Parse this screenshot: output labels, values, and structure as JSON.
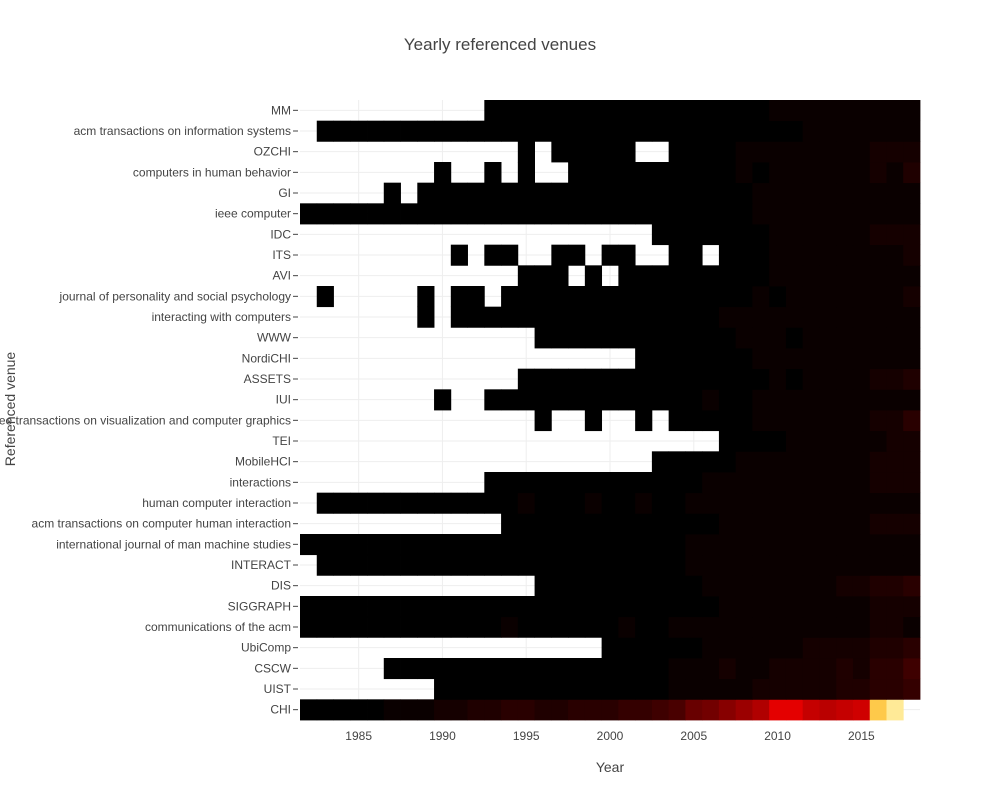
{
  "chart_data": {
    "type": "heatmap",
    "title": "Yearly referenced venues",
    "xlabel": "Year",
    "ylabel": "Referenced venue",
    "x_tick_labels": [
      "1985",
      "1990",
      "1995",
      "2000",
      "2005",
      "2010",
      "2015"
    ],
    "x_ticks": [
      1985,
      1990,
      1995,
      2000,
      2005,
      2010,
      2015
    ],
    "years": [
      1982,
      1983,
      1984,
      1985,
      1986,
      1987,
      1988,
      1989,
      1990,
      1991,
      1992,
      1993,
      1994,
      1995,
      1996,
      1997,
      1998,
      1999,
      2000,
      2001,
      2002,
      2003,
      2004,
      2005,
      2006,
      2007,
      2008,
      2009,
      2010,
      2011,
      2012,
      2013,
      2014,
      2015,
      2016,
      2017,
      2018
    ],
    "xlim": [
      1981.5,
      2018.5
    ],
    "grid": true,
    "colorscale": [
      "#000000",
      "#e60000",
      "#ffd24d",
      "#fff0a8"
    ],
    "zmax": 60,
    "venues": [
      "CHI",
      "UIST",
      "CSCW",
      "UbiComp",
      "communications of the acm",
      "SIGGRAPH",
      "DIS",
      "INTERACT",
      "international journal of man machine studies",
      "acm transactions on computer human interaction",
      "human computer interaction",
      "interactions",
      "MobileHCI",
      "TEI",
      "ieee transactions on visualization and computer graphics",
      "IUI",
      "ASSETS",
      "NordiCHI",
      "WWW",
      "interacting with computers",
      "journal of personality and social psychology",
      "AVI",
      "ITS",
      "IDC",
      "ieee computer",
      "GI",
      "computers in human behavior",
      "OZCHI",
      "acm transactions on information systems",
      "MM"
    ],
    "rows": [
      {
        "venue": "CHI",
        "z": [
          0,
          0,
          0,
          0,
          0,
          1,
          1,
          1,
          2,
          2,
          3,
          3,
          4,
          4,
          3,
          3,
          4,
          4,
          4,
          5,
          5,
          6,
          7,
          10,
          11,
          13,
          15,
          17,
          22,
          22,
          19,
          18,
          19,
          20,
          48,
          58,
          null
        ]
      },
      {
        "venue": "UIST",
        "z": [
          null,
          null,
          null,
          null,
          null,
          null,
          null,
          null,
          0,
          0,
          0,
          0,
          0,
          0,
          0,
          0,
          0,
          0,
          0,
          0,
          0,
          0,
          1,
          1,
          1,
          1,
          1,
          2,
          2,
          2,
          2,
          2,
          3,
          3,
          4,
          4,
          5
        ]
      },
      {
        "venue": "CSCW",
        "z": [
          null,
          null,
          null,
          null,
          null,
          0,
          0,
          0,
          0,
          0,
          0,
          0,
          0,
          0,
          0,
          0,
          0,
          0,
          0,
          0,
          0,
          0,
          1,
          1,
          1,
          2,
          1,
          1,
          2,
          2,
          2,
          2,
          3,
          2,
          4,
          4,
          6
        ]
      },
      {
        "venue": "UbiComp",
        "z": [
          null,
          null,
          null,
          null,
          null,
          null,
          null,
          null,
          null,
          null,
          null,
          null,
          null,
          null,
          null,
          null,
          null,
          null,
          0,
          0,
          0,
          0,
          0,
          0,
          1,
          1,
          1,
          1,
          1,
          1,
          2,
          2,
          2,
          2,
          3,
          3,
          4
        ]
      },
      {
        "venue": "communications of the acm",
        "z": [
          0,
          0,
          0,
          0,
          0,
          0,
          0,
          0,
          0,
          0,
          0,
          0,
          1,
          0,
          0,
          0,
          0,
          0,
          0,
          1,
          0,
          0,
          1,
          1,
          1,
          1,
          1,
          1,
          1,
          1,
          1,
          1,
          1,
          1,
          2,
          2,
          1
        ]
      },
      {
        "venue": "SIGGRAPH",
        "z": [
          0,
          0,
          0,
          0,
          0,
          0,
          0,
          0,
          0,
          0,
          0,
          0,
          0,
          0,
          0,
          0,
          0,
          0,
          0,
          0,
          0,
          0,
          0,
          0,
          0,
          1,
          1,
          1,
          1,
          1,
          1,
          1,
          1,
          1,
          2,
          2,
          2
        ]
      },
      {
        "venue": "DIS",
        "z": [
          null,
          null,
          null,
          null,
          null,
          null,
          null,
          null,
          null,
          null,
          null,
          null,
          null,
          null,
          0,
          0,
          0,
          0,
          0,
          0,
          0,
          0,
          0,
          0,
          1,
          1,
          1,
          1,
          1,
          1,
          1,
          1,
          2,
          2,
          3,
          3,
          4
        ]
      },
      {
        "venue": "INTERACT",
        "z": [
          null,
          0,
          0,
          0,
          0,
          0,
          0,
          0,
          0,
          0,
          0,
          0,
          0,
          0,
          0,
          0,
          0,
          0,
          0,
          0,
          0,
          0,
          0,
          1,
          1,
          1,
          1,
          1,
          1,
          1,
          1,
          1,
          1,
          1,
          1,
          1,
          1
        ]
      },
      {
        "venue": "international journal of man machine studies",
        "z": [
          0,
          0,
          0,
          0,
          0,
          0,
          0,
          0,
          0,
          0,
          0,
          0,
          0,
          0,
          0,
          0,
          0,
          0,
          0,
          0,
          0,
          0,
          0,
          1,
          1,
          1,
          1,
          1,
          1,
          1,
          1,
          1,
          1,
          1,
          1,
          1,
          1
        ]
      },
      {
        "venue": "acm transactions on computer human interaction",
        "z": [
          null,
          null,
          null,
          null,
          null,
          null,
          null,
          null,
          null,
          null,
          null,
          null,
          0,
          0,
          0,
          0,
          0,
          0,
          0,
          0,
          0,
          0,
          0,
          0,
          0,
          1,
          1,
          1,
          1,
          1,
          1,
          1,
          1,
          1,
          2,
          2,
          2
        ]
      },
      {
        "venue": "human computer interaction",
        "z": [
          null,
          0,
          0,
          0,
          0,
          0,
          0,
          0,
          0,
          0,
          0,
          0,
          0,
          1,
          0,
          0,
          0,
          1,
          0,
          0,
          1,
          0,
          0,
          1,
          1,
          1,
          1,
          1,
          1,
          1,
          1,
          1,
          1,
          1,
          1,
          1,
          1
        ]
      },
      {
        "venue": "interactions",
        "z": [
          null,
          null,
          null,
          null,
          null,
          null,
          null,
          null,
          null,
          null,
          null,
          0,
          0,
          0,
          0,
          0,
          0,
          0,
          0,
          0,
          0,
          0,
          0,
          0,
          1,
          1,
          1,
          1,
          1,
          1,
          1,
          1,
          1,
          1,
          2,
          2,
          2
        ]
      },
      {
        "venue": "MobileHCI",
        "z": [
          null,
          null,
          null,
          null,
          null,
          null,
          null,
          null,
          null,
          null,
          null,
          null,
          null,
          null,
          null,
          null,
          null,
          null,
          null,
          null,
          null,
          0,
          0,
          0,
          0,
          0,
          1,
          1,
          1,
          1,
          1,
          1,
          1,
          1,
          2,
          2,
          2
        ]
      },
      {
        "venue": "TEI",
        "z": [
          null,
          null,
          null,
          null,
          null,
          null,
          null,
          null,
          null,
          null,
          null,
          null,
          null,
          null,
          null,
          null,
          null,
          null,
          null,
          null,
          null,
          null,
          null,
          null,
          null,
          0,
          0,
          0,
          0,
          1,
          1,
          1,
          1,
          1,
          1,
          2,
          2
        ]
      },
      {
        "venue": "ieee transactions on visualization and computer graphics",
        "z": [
          null,
          null,
          null,
          null,
          null,
          null,
          null,
          null,
          null,
          null,
          null,
          null,
          null,
          null,
          0,
          null,
          null,
          0,
          null,
          null,
          0,
          null,
          0,
          0,
          0,
          0,
          0,
          1,
          1,
          1,
          1,
          1,
          1,
          1,
          2,
          2,
          4
        ]
      },
      {
        "venue": "IUI",
        "z": [
          null,
          null,
          null,
          null,
          null,
          null,
          null,
          null,
          0,
          null,
          null,
          0,
          0,
          0,
          0,
          0,
          0,
          0,
          0,
          0,
          0,
          0,
          0,
          0,
          1,
          0,
          0,
          1,
          1,
          1,
          1,
          1,
          1,
          1,
          1,
          1,
          1
        ]
      },
      {
        "venue": "ASSETS",
        "z": [
          null,
          null,
          null,
          null,
          null,
          null,
          null,
          null,
          null,
          null,
          null,
          null,
          null,
          0,
          0,
          0,
          0,
          0,
          0,
          0,
          0,
          0,
          0,
          0,
          0,
          0,
          0,
          0,
          1,
          0,
          1,
          1,
          1,
          1,
          2,
          2,
          3
        ]
      },
      {
        "venue": "NordiCHI",
        "z": [
          null,
          null,
          null,
          null,
          null,
          null,
          null,
          null,
          null,
          null,
          null,
          null,
          null,
          null,
          null,
          null,
          null,
          null,
          null,
          null,
          0,
          0,
          0,
          0,
          0,
          0,
          0,
          1,
          1,
          1,
          1,
          1,
          1,
          1,
          1,
          1,
          1
        ]
      },
      {
        "venue": "WWW",
        "z": [
          null,
          null,
          null,
          null,
          null,
          null,
          null,
          null,
          null,
          null,
          null,
          null,
          null,
          null,
          0,
          0,
          0,
          0,
          0,
          0,
          0,
          0,
          0,
          0,
          0,
          0,
          1,
          1,
          1,
          0,
          1,
          1,
          1,
          1,
          1,
          1,
          1
        ]
      },
      {
        "venue": "interacting with computers",
        "z": [
          null,
          null,
          null,
          null,
          null,
          null,
          null,
          0,
          null,
          0,
          0,
          0,
          0,
          0,
          0,
          0,
          0,
          0,
          0,
          0,
          0,
          0,
          0,
          0,
          0,
          1,
          1,
          1,
          1,
          1,
          1,
          1,
          1,
          1,
          1,
          1,
          1
        ]
      },
      {
        "venue": "journal of personality and social psychology",
        "z": [
          null,
          0,
          null,
          null,
          null,
          null,
          null,
          0,
          null,
          0,
          0,
          null,
          0,
          0,
          0,
          0,
          0,
          0,
          0,
          0,
          0,
          0,
          0,
          0,
          0,
          0,
          0,
          1,
          0,
          1,
          1,
          1,
          1,
          1,
          1,
          1,
          2
        ]
      },
      {
        "venue": "AVI",
        "z": [
          null,
          null,
          null,
          null,
          null,
          null,
          null,
          null,
          null,
          null,
          null,
          null,
          null,
          0,
          0,
          0,
          null,
          0,
          null,
          0,
          0,
          0,
          0,
          0,
          0,
          0,
          0,
          0,
          1,
          1,
          1,
          1,
          1,
          1,
          1,
          1,
          1
        ]
      },
      {
        "venue": "ITS",
        "z": [
          null,
          null,
          null,
          null,
          null,
          null,
          null,
          null,
          null,
          0,
          null,
          0,
          0,
          null,
          null,
          0,
          0,
          null,
          0,
          0,
          null,
          null,
          0,
          0,
          null,
          0,
          0,
          0,
          1,
          1,
          1,
          1,
          1,
          1,
          1,
          1,
          2
        ]
      },
      {
        "venue": "IDC",
        "z": [
          null,
          null,
          null,
          null,
          null,
          null,
          null,
          null,
          null,
          null,
          null,
          null,
          null,
          null,
          null,
          null,
          null,
          null,
          null,
          null,
          null,
          0,
          0,
          0,
          0,
          0,
          0,
          0,
          1,
          1,
          1,
          1,
          1,
          1,
          2,
          2,
          2
        ]
      },
      {
        "venue": "ieee computer",
        "z": [
          0,
          0,
          0,
          0,
          0,
          0,
          0,
          0,
          0,
          0,
          0,
          0,
          0,
          0,
          0,
          0,
          0,
          0,
          0,
          0,
          0,
          0,
          0,
          0,
          0,
          0,
          0,
          1,
          1,
          1,
          1,
          1,
          1,
          1,
          1,
          1,
          1
        ]
      },
      {
        "venue": "GI",
        "z": [
          null,
          null,
          null,
          null,
          null,
          0,
          null,
          0,
          0,
          0,
          0,
          0,
          0,
          0,
          0,
          0,
          0,
          0,
          0,
          0,
          0,
          0,
          0,
          0,
          0,
          0,
          0,
          1,
          1,
          1,
          1,
          1,
          1,
          1,
          1,
          1,
          1
        ]
      },
      {
        "venue": "computers in human behavior",
        "z": [
          null,
          null,
          null,
          null,
          null,
          null,
          null,
          null,
          0,
          null,
          null,
          0,
          null,
          0,
          null,
          null,
          0,
          0,
          0,
          0,
          0,
          0,
          0,
          0,
          0,
          0,
          1,
          0,
          1,
          1,
          1,
          1,
          1,
          1,
          2,
          1,
          3
        ]
      },
      {
        "venue": "OZCHI",
        "z": [
          null,
          null,
          null,
          null,
          null,
          null,
          null,
          null,
          null,
          null,
          null,
          null,
          null,
          0,
          null,
          0,
          0,
          0,
          0,
          0,
          null,
          null,
          0,
          0,
          0,
          0,
          1,
          1,
          1,
          1,
          1,
          1,
          1,
          1,
          2,
          2,
          2
        ]
      },
      {
        "venue": "acm transactions on information systems",
        "z": [
          null,
          0,
          0,
          0,
          0,
          0,
          0,
          0,
          0,
          0,
          0,
          0,
          0,
          0,
          0,
          0,
          0,
          0,
          0,
          0,
          0,
          0,
          0,
          0,
          0,
          0,
          0,
          0,
          0,
          0,
          1,
          1,
          1,
          1,
          1,
          1,
          1
        ]
      },
      {
        "venue": "MM",
        "z": [
          null,
          null,
          null,
          null,
          null,
          null,
          null,
          null,
          null,
          null,
          null,
          0,
          0,
          0,
          0,
          0,
          0,
          0,
          0,
          0,
          0,
          0,
          0,
          0,
          0,
          0,
          0,
          0,
          1,
          1,
          1,
          1,
          1,
          1,
          1,
          1,
          1
        ]
      }
    ]
  }
}
